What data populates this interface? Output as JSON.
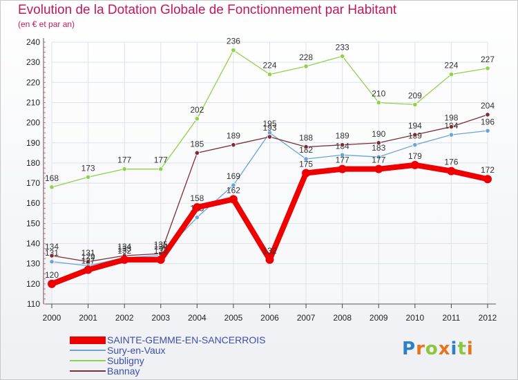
{
  "chart_data": {
    "type": "line",
    "title": "Evolution de la Dotation Globale de Fonctionnement par Habitant",
    "subtitle": "(en € et par an)",
    "xlabel": "",
    "ylabel": "",
    "categories": [
      "2000",
      "2001",
      "2002",
      "2003",
      "2004",
      "2005",
      "2006",
      "2007",
      "2008",
      "2009",
      "2010",
      "2011",
      "2012"
    ],
    "ylim": [
      110,
      240
    ],
    "yticks": [
      110,
      120,
      130,
      140,
      150,
      160,
      170,
      180,
      190,
      200,
      210,
      220,
      230,
      240
    ],
    "grid": true,
    "legend_position": "bottom",
    "series": [
      {
        "name": "Subligny",
        "color": "#8fd24a",
        "values": [
          168,
          173,
          177,
          177,
          202,
          236,
          224,
          228,
          233,
          210,
          209,
          224,
          227
        ]
      },
      {
        "name": "Sury-en-Vaux",
        "color": "#6ba3d6",
        "values": [
          131,
          129,
          133,
          134,
          153,
          169,
          195,
          182,
          184,
          183,
          189,
          194,
          196
        ]
      },
      {
        "name": "Bannay",
        "color": "#7a2e35",
        "values": [
          134,
          131,
          134,
          135,
          185,
          189,
          193,
          188,
          189,
          190,
          194,
          198,
          204
        ]
      },
      {
        "name": "SAINTE-GEMME-EN-SANCERROIS",
        "color": "#ee0000",
        "values": [
          120,
          127,
          132,
          132,
          158,
          162,
          132,
          175,
          177,
          177,
          179,
          176,
          172
        ]
      }
    ]
  },
  "legend": {
    "items": [
      {
        "label": "SAINTE-GEMME-EN-SANCERROIS",
        "color": "#ee0000"
      },
      {
        "label": "Sury-en-Vaux",
        "color": "#6ba3d6"
      },
      {
        "label": "Subligny",
        "color": "#8fd24a"
      },
      {
        "label": "Bannay",
        "color": "#7a2e35"
      }
    ]
  },
  "logo": {
    "text": "Proxiti"
  }
}
